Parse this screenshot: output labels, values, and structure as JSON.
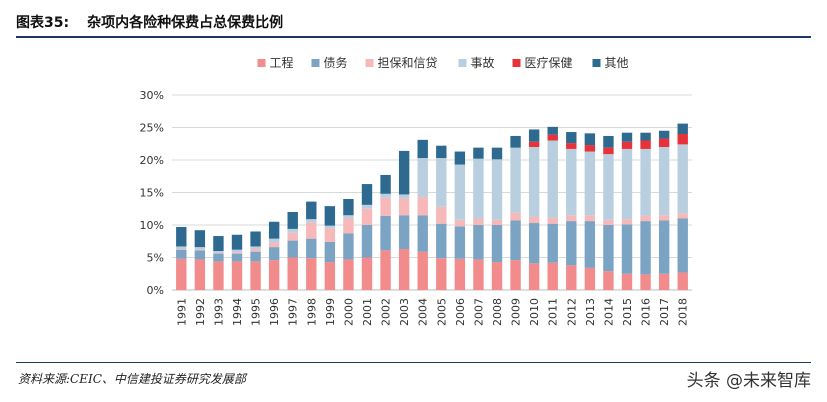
{
  "header": {
    "figure_label": "图表35:",
    "title": "杂项内各险种保费占总保费比例"
  },
  "footer": {
    "source": "资料来源:CEIC、中信建投证券研究发展部",
    "watermark": "头条 @未来智库"
  },
  "chart_data": {
    "type": "bar",
    "stacked": true,
    "title": "杂项内各险种保费占总保费比例",
    "xlabel": "",
    "ylabel": "",
    "ylim": [
      0,
      30
    ],
    "yticks": [
      "0%",
      "5%",
      "10%",
      "15%",
      "20%",
      "25%",
      "30%"
    ],
    "grid": true,
    "legend_position": "top",
    "categories": [
      "1991",
      "1992",
      "1993",
      "1994",
      "1995",
      "1996",
      "1997",
      "1998",
      "1999",
      "2000",
      "2001",
      "2002",
      "2003",
      "2004",
      "2005",
      "2006",
      "2007",
      "2008",
      "2009",
      "2010",
      "2011",
      "2012",
      "2013",
      "2014",
      "2015",
      "2016",
      "2017",
      "2018"
    ],
    "series": [
      {
        "name": "工程",
        "color": "#f28b8b",
        "values": [
          4.8,
          4.7,
          4.4,
          4.4,
          4.4,
          4.6,
          5.0,
          4.9,
          4.3,
          4.7,
          5.0,
          6.1,
          6.3,
          5.9,
          4.9,
          4.8,
          4.7,
          4.3,
          4.6,
          4.1,
          4.2,
          3.8,
          3.4,
          2.9,
          2.5,
          2.4,
          2.5,
          2.7
        ]
      },
      {
        "name": "债务",
        "color": "#7ba3c4",
        "values": [
          1.4,
          1.4,
          1.2,
          1.2,
          1.5,
          2.0,
          2.6,
          3.0,
          3.1,
          4.0,
          5.0,
          5.3,
          5.2,
          5.6,
          5.3,
          5.0,
          5.3,
          5.7,
          6.1,
          6.2,
          6.0,
          6.8,
          7.2,
          7.1,
          7.6,
          8.2,
          8.2,
          8.3
        ]
      },
      {
        "name": "担保和信贷",
        "color": "#f6b8b8",
        "values": [
          0.1,
          0.1,
          0.1,
          0.2,
          0.4,
          0.7,
          1.2,
          2.5,
          2.1,
          2.3,
          2.5,
          2.8,
          2.6,
          2.8,
          2.6,
          1.0,
          1.0,
          0.8,
          1.2,
          1.0,
          0.9,
          0.9,
          0.9,
          0.8,
          0.8,
          0.8,
          0.8,
          0.8
        ]
      },
      {
        "name": "事故",
        "color": "#b9cfe0",
        "values": [
          0.4,
          0.4,
          0.3,
          0.4,
          0.4,
          0.6,
          0.6,
          0.5,
          0.4,
          0.5,
          0.6,
          0.6,
          0.6,
          6.0,
          7.5,
          8.5,
          9.2,
          9.3,
          10.0,
          10.7,
          11.9,
          10.2,
          9.8,
          10.1,
          10.8,
          10.3,
          10.5,
          10.6
        ]
      },
      {
        "name": "医疗保健",
        "color": "#e8323a",
        "values": [
          0,
          0,
          0,
          0,
          0,
          0,
          0,
          0,
          0,
          0,
          0,
          0,
          0,
          0,
          0,
          0,
          0,
          0,
          0,
          0.8,
          0.9,
          0.9,
          1.0,
          1.0,
          1.1,
          1.3,
          1.3,
          1.6
        ]
      },
      {
        "name": "其他",
        "color": "#2e6990",
        "values": [
          3.0,
          2.6,
          2.3,
          2.3,
          2.3,
          2.6,
          2.6,
          2.7,
          3.0,
          2.5,
          3.2,
          2.9,
          6.7,
          2.8,
          1.9,
          2.0,
          1.7,
          1.8,
          1.8,
          1.9,
          1.2,
          1.7,
          1.8,
          1.8,
          1.4,
          1.2,
          1.2,
          1.6
        ]
      }
    ]
  }
}
